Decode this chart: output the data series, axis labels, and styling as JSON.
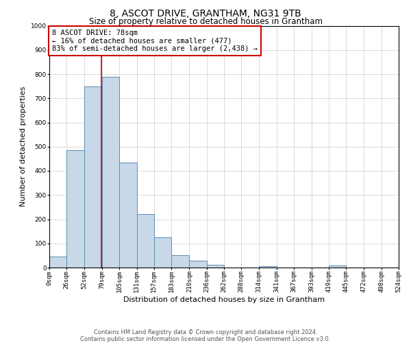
{
  "title": "8, ASCOT DRIVE, GRANTHAM, NG31 9TB",
  "subtitle": "Size of property relative to detached houses in Grantham",
  "xlabel": "Distribution of detached houses by size in Grantham",
  "ylabel": "Number of detached properties",
  "bin_edges": [
    0,
    26,
    52,
    79,
    105,
    131,
    157,
    183,
    210,
    236,
    262,
    288,
    314,
    341,
    367,
    393,
    419,
    445,
    472,
    498,
    524
  ],
  "bin_counts": [
    45,
    485,
    748,
    790,
    435,
    220,
    125,
    52,
    28,
    12,
    0,
    0,
    5,
    0,
    0,
    0,
    8,
    0,
    0,
    0
  ],
  "bar_facecolor": "#c8d8e8",
  "bar_edgecolor": "#5a8ab0",
  "grid_color": "#cccccc",
  "bg_color": "#ffffff",
  "property_line_x": 78,
  "property_line_color": "#cc0000",
  "annotation_box_edgecolor": "#cc0000",
  "annotation_text": "8 ASCOT DRIVE: 78sqm\n← 16% of detached houses are smaller (477)\n83% of semi-detached houses are larger (2,438) →",
  "ylim": [
    0,
    1000
  ],
  "yticks": [
    0,
    100,
    200,
    300,
    400,
    500,
    600,
    700,
    800,
    900,
    1000
  ],
  "tick_labels": [
    "0sqm",
    "26sqm",
    "52sqm",
    "79sqm",
    "105sqm",
    "131sqm",
    "157sqm",
    "183sqm",
    "210sqm",
    "236sqm",
    "262sqm",
    "288sqm",
    "314sqm",
    "341sqm",
    "367sqm",
    "393sqm",
    "419sqm",
    "445sqm",
    "472sqm",
    "498sqm",
    "524sqm"
  ],
  "footnote": "Contains HM Land Registry data © Crown copyright and database right 2024.\nContains public sector information licensed under the Open Government Licence v3.0.",
  "title_fontsize": 10,
  "subtitle_fontsize": 8.5,
  "axis_label_fontsize": 8,
  "tick_fontsize": 6.5,
  "annotation_fontsize": 7.5,
  "footnote_fontsize": 6
}
